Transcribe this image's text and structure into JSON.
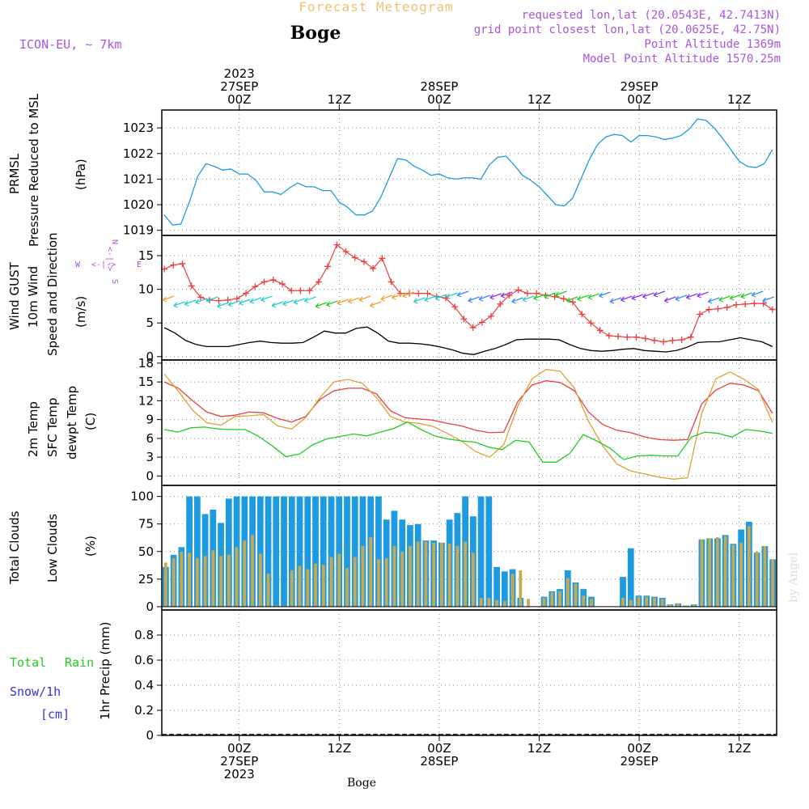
{
  "header": {
    "product": "Forecast Meteogram",
    "station": "Boge",
    "model": "ICON-EU, ~ 7km",
    "requested": "requested lon,lat (20.0543E, 42.7413N)",
    "grid_point": "grid point closest lon,lat (20.0625E, 42.75N)",
    "point_alt": "Point Altitude 1369m",
    "model_alt": "Model Point Altitude 1570.25m",
    "credit": "by Angel",
    "footer": "Boge"
  },
  "colors": {
    "pressure": "#1e9be0",
    "gust": "#e84040",
    "wind": "#000000",
    "temp2m": "#e84040",
    "sfc": "#dfa030",
    "dew": "#22cc22",
    "total_cloud": "#1e9be0",
    "low_cloud": "#c8a850",
    "rain": "#22cc22",
    "snow": "#3333dd",
    "header_purple": "#aa55dd",
    "title_orange": "#f0c070"
  },
  "time_axis": {
    "top_labels": [
      {
        "lines": [
          "2023",
          "27SEP",
          "00Z"
        ]
      },
      {
        "lines": [
          "12Z"
        ]
      },
      {
        "lines": [
          "28SEP",
          "00Z"
        ]
      },
      {
        "lines": [
          "12Z"
        ]
      },
      {
        "lines": [
          "29SEP",
          "00Z"
        ]
      },
      {
        "lines": [
          "12Z"
        ]
      }
    ],
    "bottom_labels": [
      {
        "lines": [
          "00Z",
          "27SEP",
          "2023"
        ]
      },
      {
        "lines": [
          "12Z"
        ]
      },
      {
        "lines": [
          "00Z",
          "28SEP"
        ]
      },
      {
        "lines": [
          "12Z"
        ]
      },
      {
        "lines": [
          "00Z",
          "29SEP"
        ]
      },
      {
        "lines": [
          "12Z"
        ]
      }
    ]
  },
  "panels": {
    "pressure": {
      "labels": [
        "PRMSL",
        "Pressure Reduced to MSL",
        "(hPa)"
      ],
      "ticks": [
        "1019",
        "1020",
        "1021",
        "1022",
        "1023"
      ]
    },
    "wind": {
      "labels": [
        "Wind GUST",
        "10m Wind",
        "Speed and Direction",
        "(m/s)"
      ],
      "compass": {
        "w": "W",
        "e": "E",
        "n": "N",
        "s": "S"
      },
      "ticks": [
        "0",
        "5",
        "10",
        "15"
      ]
    },
    "temp": {
      "labels": [
        "2m Temp",
        "SFC Temp",
        "dewpt Temp",
        "(C)"
      ],
      "ticks": [
        "0",
        "3",
        "6",
        "9",
        "12",
        "15",
        "18"
      ]
    },
    "clouds": {
      "labels": [
        "Total Clouds",
        "Low Clouds",
        "(%)"
      ],
      "ticks": [
        "0",
        "25",
        "50",
        "75",
        "100"
      ]
    },
    "precip": {
      "labels": [
        "Total",
        "Rain",
        "Snow/1h",
        "[cm]",
        "1hr Precip (mm)"
      ],
      "ticks": [
        "0",
        "0.2",
        "0.4",
        "0.6",
        "0.8"
      ]
    }
  },
  "chart_data": [
    {
      "type": "line",
      "title": "PRMSL Pressure Reduced to MSL",
      "ylabel": "(hPa)",
      "x_hours": [
        -9,
        -8,
        -7,
        -6,
        -5,
        -4,
        -3,
        -2,
        -1,
        0,
        1,
        2,
        3,
        4,
        5,
        6,
        7,
        8,
        9,
        10,
        11,
        12,
        13,
        14,
        15,
        16,
        17,
        18,
        19,
        20,
        21,
        22,
        23,
        24,
        25,
        26,
        27,
        28,
        29,
        30,
        31,
        32,
        33,
        34,
        35,
        36,
        37,
        38,
        39,
        40,
        41,
        42,
        43,
        44,
        45,
        46,
        47,
        48,
        49,
        50,
        51,
        52,
        53,
        54,
        55,
        56,
        57,
        58,
        59,
        60,
        61,
        62,
        63,
        64
      ],
      "values": [
        1019.6,
        1019.2,
        1019.25,
        1020.1,
        1021.1,
        1021.6,
        1021.5,
        1021.35,
        1021.4,
        1021.2,
        1021.2,
        1020.95,
        1020.5,
        1020.5,
        1020.4,
        1020.65,
        1020.85,
        1020.7,
        1020.7,
        1020.55,
        1020.55,
        1020.1,
        1019.9,
        1019.6,
        1019.6,
        1019.75,
        1020.3,
        1021.05,
        1021.8,
        1021.75,
        1021.5,
        1021.35,
        1021.15,
        1021.2,
        1021.05,
        1021.0,
        1021.05,
        1021.05,
        1021.0,
        1021.55,
        1021.85,
        1021.9,
        1021.55,
        1021.15,
        1020.95,
        1020.7,
        1020.35,
        1020.0,
        1019.95,
        1020.25,
        1021.0,
        1021.75,
        1022.35,
        1022.65,
        1022.75,
        1022.7,
        1022.45,
        1022.7,
        1022.7,
        1022.65,
        1022.55,
        1022.6,
        1022.7,
        1022.95,
        1023.35,
        1023.3,
        1023.0,
        1022.6,
        1022.15,
        1021.7,
        1021.5,
        1021.45,
        1021.6,
        1022.15
      ],
      "ylim": [
        1018.8,
        1023.7
      ]
    },
    {
      "type": "line",
      "title": "Wind GUST / 10m Wind Speed and Direction",
      "ylabel": "(m/s)",
      "series": [
        {
          "name": "Wind GUST",
          "values": [
            13.0,
            13.6,
            13.8,
            10.5,
            8.8,
            8.4,
            8.3,
            8.4,
            8.6,
            9.4,
            10.4,
            11.1,
            11.4,
            10.8,
            9.8,
            9.8,
            9.8,
            11.1,
            13.4,
            16.6,
            15.6,
            14.7,
            14.1,
            13.1,
            14.6,
            11.1,
            9.4,
            9.4,
            9.4,
            9.4,
            8.9,
            8.7,
            7.4,
            5.6,
            4.3,
            5.1,
            6.0,
            7.8,
            9.1,
            9.9,
            9.4,
            9.4,
            9.1,
            8.9,
            8.6,
            8.1,
            6.3,
            5.0,
            3.9,
            3.1,
            3.0,
            2.9,
            2.9,
            2.7,
            2.4,
            2.2,
            2.4,
            2.5,
            2.9,
            6.3,
            7.0,
            7.1,
            7.3,
            7.7,
            7.8,
            7.9,
            7.9,
            7.0
          ]
        },
        {
          "name": "10m Wind",
          "values": [
            4.3,
            3.5,
            2.4,
            1.8,
            1.5,
            1.5,
            1.5,
            1.8,
            2.1,
            2.3,
            2.1,
            2.0,
            2.0,
            2.1,
            2.9,
            3.8,
            3.5,
            3.5,
            4.2,
            4.4,
            3.5,
            2.3,
            2.0,
            2.0,
            1.9,
            1.7,
            1.4,
            1.0,
            0.5,
            0.3,
            0.8,
            1.2,
            1.8,
            2.5,
            2.6,
            2.6,
            2.6,
            2.5,
            1.8,
            1.2,
            0.9,
            0.8,
            0.9,
            1.1,
            1.2,
            0.9,
            0.8,
            0.7,
            0.9,
            1.4,
            2.1,
            2.2,
            2.2,
            2.5,
            2.8,
            2.5,
            2.2,
            1.5
          ]
        }
      ],
      "ylim": [
        -0.5,
        18
      ]
    },
    {
      "type": "line",
      "title": "2m Temp / SFC Temp / dewpt Temp",
      "ylabel": "(C)",
      "series": [
        {
          "name": "2m Temp",
          "values": [
            15.0,
            14.0,
            12.0,
            10.2,
            9.5,
            9.7,
            10.2,
            10.1,
            9.2,
            8.6,
            9.5,
            12.2,
            13.6,
            14.0,
            14.0,
            13.1,
            10.4,
            9.3,
            9.1,
            8.9,
            8.4,
            8.0,
            7.3,
            6.9,
            7.0,
            11.9,
            14.5,
            15.2,
            14.9,
            13.6,
            10.2,
            8.2,
            7.3,
            6.9,
            6.2,
            5.8,
            5.7,
            5.8,
            11.5,
            13.7,
            14.8,
            14.5,
            13.6,
            10.0
          ]
        },
        {
          "name": "SFC Temp",
          "values": [
            16.3,
            13.5,
            10.5,
            8.5,
            8.1,
            9.5,
            9.6,
            9.8,
            8.0,
            7.5,
            9.3,
            12.5,
            15.0,
            15.4,
            14.8,
            12.5,
            9.5,
            8.6,
            8.4,
            7.9,
            6.8,
            5.6,
            3.9,
            3.0,
            5.0,
            11.2,
            15.5,
            17.0,
            16.7,
            14.0,
            8.7,
            4.8,
            1.9,
            0.8,
            0.3,
            -0.2,
            -0.5,
            -0.3,
            10.0,
            15.5,
            16.6,
            15.4,
            13.8,
            8.5
          ]
        },
        {
          "name": "dewpt Temp",
          "values": [
            7.4,
            7.0,
            7.7,
            7.8,
            7.5,
            7.4,
            7.4,
            6.3,
            4.8,
            3.1,
            3.5,
            5.0,
            5.9,
            6.3,
            6.7,
            6.4,
            7.0,
            7.6,
            8.6,
            7.4,
            6.4,
            5.9,
            5.6,
            5.4,
            4.6,
            4.2,
            5.7,
            5.4,
            2.2,
            2.2,
            3.6,
            6.6,
            5.6,
            4.4,
            2.6,
            3.2,
            3.3,
            3.2,
            3.2,
            6.2,
            7.0,
            6.8,
            6.2,
            7.4,
            7.2,
            6.8
          ]
        }
      ],
      "ylim": [
        -1.5,
        18.5
      ]
    },
    {
      "type": "bar",
      "title": "Total Clouds / Low Clouds",
      "ylabel": "(%)",
      "series": [
        {
          "name": "Total Clouds",
          "values": [
            36,
            47,
            54,
            100,
            100,
            84,
            88,
            76,
            98,
            100,
            100,
            100,
            100,
            100,
            100,
            100,
            100,
            100,
            100,
            100,
            100,
            100,
            100,
            100,
            100,
            100,
            100,
            100,
            79,
            87,
            79,
            74,
            75,
            60,
            60,
            58,
            79,
            85,
            100,
            82,
            100,
            100,
            36,
            32,
            34,
            8,
            0,
            0,
            9,
            14,
            16,
            33,
            22,
            16,
            9,
            0,
            0,
            0,
            27,
            53,
            10,
            10,
            9,
            8,
            2,
            3,
            1,
            2,
            61,
            62,
            62,
            65,
            57,
            70,
            77,
            49,
            55,
            43
          ]
        },
        {
          "name": "Low Clouds",
          "values": [
            40,
            44,
            50,
            49,
            44,
            46,
            51,
            46,
            47,
            54,
            60,
            65,
            48,
            30,
            1,
            1,
            33,
            37,
            34,
            39,
            38,
            45,
            48,
            35,
            45,
            55,
            63,
            43,
            44,
            55,
            50,
            55,
            59,
            59,
            58,
            58,
            57,
            55,
            59,
            49,
            8,
            8,
            6,
            5,
            30,
            33,
            7,
            0,
            8,
            13,
            14,
            26,
            21,
            10,
            7,
            0,
            0,
            0,
            8,
            6,
            9,
            9,
            8,
            7,
            2,
            3,
            1,
            2,
            61,
            62,
            63,
            64,
            56,
            58,
            73,
            50,
            55,
            43
          ]
        }
      ],
      "ylim": [
        -3,
        110
      ]
    },
    {
      "type": "bar",
      "title": "1hr Precip",
      "ylabel": "1hr Precip (mm)",
      "series": [
        {
          "name": "Total Rain",
          "values": []
        },
        {
          "name": "Snow/1h",
          "values": []
        }
      ],
      "ylim": [
        0,
        1.0
      ]
    }
  ]
}
